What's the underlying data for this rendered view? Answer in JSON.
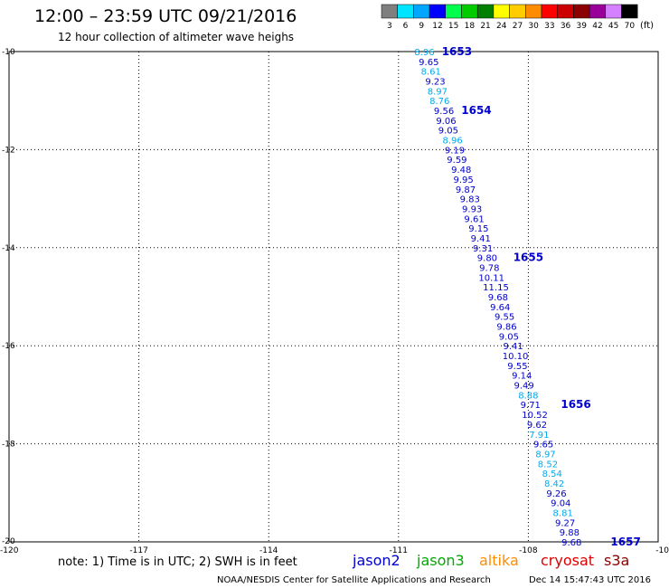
{
  "header": {
    "title": "12:00 – 23:59 UTC 09/21/2016",
    "subtitle": "12 hour collection of altimeter wave heighs"
  },
  "legend": {
    "bins": [
      {
        "label": "3",
        "color": "#7f7f7f"
      },
      {
        "label": "6",
        "color": "#00e5ff"
      },
      {
        "label": "9",
        "color": "#00a6ff"
      },
      {
        "label": "12",
        "color": "#0000ff"
      },
      {
        "label": "15",
        "color": "#00ff4c"
      },
      {
        "label": "18",
        "color": "#00cc00"
      },
      {
        "label": "21",
        "color": "#007f00"
      },
      {
        "label": "24",
        "color": "#ffff00"
      },
      {
        "label": "27",
        "color": "#ffcc00"
      },
      {
        "label": "30",
        "color": "#ff8c00"
      },
      {
        "label": "33",
        "color": "#ff0000"
      },
      {
        "label": "36",
        "color": "#cc0000"
      },
      {
        "label": "39",
        "color": "#8b0000"
      },
      {
        "label": "42",
        "color": "#990099"
      },
      {
        "label": "45",
        "color": "#d580ff"
      },
      {
        "label": "70",
        "color": "#000000"
      }
    ],
    "unit": "(ft)"
  },
  "footer": {
    "note": "note: 1) Time is in UTC; 2) SWH is in feet",
    "sources": [
      {
        "label": "jason2",
        "color": "#0000cc"
      },
      {
        "label": "jason3",
        "color": "#00aa00"
      },
      {
        "label": "altika",
        "color": "#ff8c00"
      },
      {
        "label": "cryosat",
        "color": "#dd0000"
      },
      {
        "label": "s3a",
        "color": "#8b0000"
      }
    ],
    "credit": "NOAA/NESDIS Center for Satellite Applications and Research",
    "timestamp": "Dec 14 15:47:43 UTC 2016"
  },
  "chart_data": {
    "type": "scatter",
    "x_axis": {
      "range": [
        -120,
        -105
      ],
      "ticks": [
        -117,
        -114,
        -111,
        -108
      ],
      "corner_labels": [
        "-120",
        "-10"
      ]
    },
    "y_axis": {
      "range": [
        -20,
        -10
      ],
      "ticks": [
        -12,
        -14,
        -16,
        -18
      ],
      "corner_labels": [
        "-10",
        "-20"
      ]
    },
    "grid": true,
    "colors": {
      "light": "#00aaee",
      "dark": "#0000cc",
      "time": "#0000cc"
    },
    "points": [
      {
        "lon": -110.4,
        "lat": -10.0,
        "swh": "8.96",
        "c": "light"
      },
      {
        "lon": -110.3,
        "lat": -10.2,
        "swh": "9.65",
        "c": "dark"
      },
      {
        "lon": -110.25,
        "lat": -10.4,
        "swh": "8.61",
        "c": "light"
      },
      {
        "lon": -110.15,
        "lat": -10.6,
        "swh": "9.23",
        "c": "dark"
      },
      {
        "lon": -110.1,
        "lat": -10.8,
        "swh": "8.97",
        "c": "light"
      },
      {
        "lon": -110.05,
        "lat": -11.0,
        "swh": "8.76",
        "c": "light"
      },
      {
        "lon": -109.95,
        "lat": -11.2,
        "swh": "9.56",
        "c": "dark"
      },
      {
        "lon": -109.9,
        "lat": -11.4,
        "swh": "9.06",
        "c": "dark"
      },
      {
        "lon": -109.85,
        "lat": -11.6,
        "swh": "9.05",
        "c": "dark"
      },
      {
        "lon": -109.75,
        "lat": -11.8,
        "swh": "8.96",
        "c": "light"
      },
      {
        "lon": -109.7,
        "lat": -12.0,
        "swh": "9.19",
        "c": "dark"
      },
      {
        "lon": -109.65,
        "lat": -12.2,
        "swh": "9.59",
        "c": "dark"
      },
      {
        "lon": -109.55,
        "lat": -12.4,
        "swh": "9.48",
        "c": "dark"
      },
      {
        "lon": -109.5,
        "lat": -12.6,
        "swh": "9.95",
        "c": "dark"
      },
      {
        "lon": -109.45,
        "lat": -12.8,
        "swh": "9.87",
        "c": "dark"
      },
      {
        "lon": -109.35,
        "lat": -13.0,
        "swh": "9.83",
        "c": "dark"
      },
      {
        "lon": -109.3,
        "lat": -13.2,
        "swh": "9.93",
        "c": "dark"
      },
      {
        "lon": -109.25,
        "lat": -13.4,
        "swh": "9.61",
        "c": "dark"
      },
      {
        "lon": -109.15,
        "lat": -13.6,
        "swh": "9.15",
        "c": "dark"
      },
      {
        "lon": -109.1,
        "lat": -13.8,
        "swh": "9.41",
        "c": "dark"
      },
      {
        "lon": -109.05,
        "lat": -14.0,
        "swh": "9.31",
        "c": "dark"
      },
      {
        "lon": -108.95,
        "lat": -14.2,
        "swh": "9.80",
        "c": "dark"
      },
      {
        "lon": -108.9,
        "lat": -14.4,
        "swh": "9.78",
        "c": "dark"
      },
      {
        "lon": -108.85,
        "lat": -14.6,
        "swh": "10.11",
        "c": "dark"
      },
      {
        "lon": -108.75,
        "lat": -14.8,
        "swh": "11.15",
        "c": "dark"
      },
      {
        "lon": -108.7,
        "lat": -15.0,
        "swh": "9.68",
        "c": "dark"
      },
      {
        "lon": -108.65,
        "lat": -15.2,
        "swh": "9.64",
        "c": "dark"
      },
      {
        "lon": -108.55,
        "lat": -15.4,
        "swh": "9.55",
        "c": "dark"
      },
      {
        "lon": -108.5,
        "lat": -15.6,
        "swh": "9.86",
        "c": "dark"
      },
      {
        "lon": -108.45,
        "lat": -15.8,
        "swh": "9.05",
        "c": "dark"
      },
      {
        "lon": -108.35,
        "lat": -16.0,
        "swh": "9.41",
        "c": "dark"
      },
      {
        "lon": -108.3,
        "lat": -16.2,
        "swh": "10.10",
        "c": "dark"
      },
      {
        "lon": -108.25,
        "lat": -16.4,
        "swh": "9.55",
        "c": "dark"
      },
      {
        "lon": -108.15,
        "lat": -16.6,
        "swh": "9.14",
        "c": "dark"
      },
      {
        "lon": -108.1,
        "lat": -16.8,
        "swh": "9.49",
        "c": "dark"
      },
      {
        "lon": -108.0,
        "lat": -17.0,
        "swh": "8.88",
        "c": "light"
      },
      {
        "lon": -107.95,
        "lat": -17.2,
        "swh": "9.71",
        "c": "dark"
      },
      {
        "lon": -107.85,
        "lat": -17.4,
        "swh": "10.52",
        "c": "dark"
      },
      {
        "lon": -107.8,
        "lat": -17.6,
        "swh": "9.62",
        "c": "dark"
      },
      {
        "lon": -107.75,
        "lat": -17.8,
        "swh": "7.91",
        "c": "light"
      },
      {
        "lon": -107.65,
        "lat": -18.0,
        "swh": "9.65",
        "c": "dark"
      },
      {
        "lon": -107.6,
        "lat": -18.2,
        "swh": "8.97",
        "c": "light"
      },
      {
        "lon": -107.55,
        "lat": -18.4,
        "swh": "8.52",
        "c": "light"
      },
      {
        "lon": -107.45,
        "lat": -18.6,
        "swh": "8.54",
        "c": "light"
      },
      {
        "lon": -107.4,
        "lat": -18.8,
        "swh": "8.42",
        "c": "light"
      },
      {
        "lon": -107.35,
        "lat": -19.0,
        "swh": "9.26",
        "c": "dark"
      },
      {
        "lon": -107.25,
        "lat": -19.2,
        "swh": "9.04",
        "c": "dark"
      },
      {
        "lon": -107.2,
        "lat": -19.4,
        "swh": "8.81",
        "c": "light"
      },
      {
        "lon": -107.15,
        "lat": -19.6,
        "swh": "9.27",
        "c": "dark"
      },
      {
        "lon": -107.05,
        "lat": -19.8,
        "swh": "9.88",
        "c": "dark"
      },
      {
        "lon": -107.0,
        "lat": -20.0,
        "swh": "9.68",
        "c": "dark"
      }
    ],
    "time_labels": [
      {
        "lon": -109.65,
        "lat": -10.0,
        "text": "1653"
      },
      {
        "lon": -109.2,
        "lat": -11.2,
        "text": "1654"
      },
      {
        "lon": -108.0,
        "lat": -14.2,
        "text": "1655"
      },
      {
        "lon": -106.9,
        "lat": -17.2,
        "text": "1656"
      },
      {
        "lon": -105.75,
        "lat": -20.0,
        "text": "1657"
      }
    ]
  }
}
